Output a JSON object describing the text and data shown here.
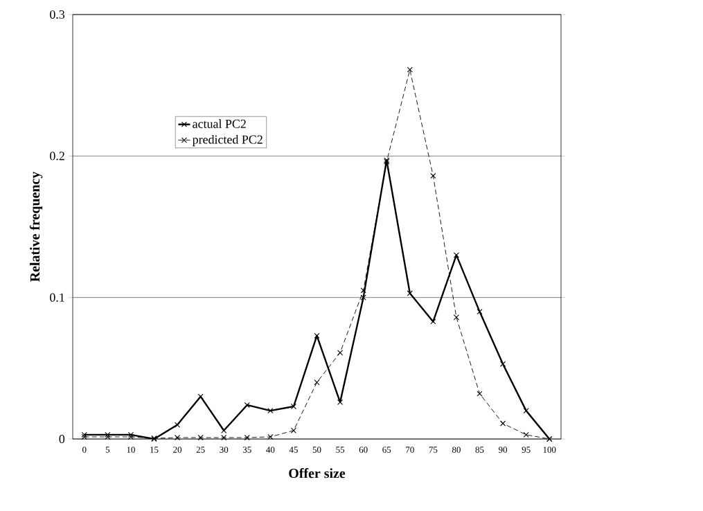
{
  "chart_data": {
    "type": "line",
    "xlabel": "Offer size",
    "ylabel": "Relative frequency",
    "categories": [
      "0",
      "5",
      "10",
      "15",
      "20",
      "25",
      "30",
      "35",
      "40",
      "45",
      "50",
      "55",
      "60",
      "65",
      "70",
      "75",
      "80",
      "85",
      "90",
      "95",
      "100"
    ],
    "series": [
      {
        "name": "actual PC2",
        "color": "#000000",
        "line_style": "solid",
        "values": [
          0.003,
          0.003,
          0.003,
          0,
          0.01,
          0.03,
          0.006,
          0.024,
          0.02,
          0.023,
          0.073,
          0.026,
          0.1,
          0.197,
          0.103,
          0.083,
          0.13,
          0.09,
          0.053,
          0.02,
          0
        ]
      },
      {
        "name": "predicted PC2",
        "color": "#000000",
        "line_style": "dashed",
        "values": [
          0.0015,
          0.0015,
          0.0015,
          0.0005,
          0.001,
          0.001,
          0.001,
          0.001,
          0.0015,
          0.006,
          0.04,
          0.061,
          0.105,
          0.196,
          0.261,
          0.186,
          0.086,
          0.032,
          0.011,
          0.003,
          0
        ]
      }
    ],
    "ylim": [
      0,
      0.3
    ],
    "yticks": [
      0,
      0.1,
      0.2,
      0.3
    ],
    "grid": "y",
    "legend": "left",
    "marker": "cross"
  }
}
